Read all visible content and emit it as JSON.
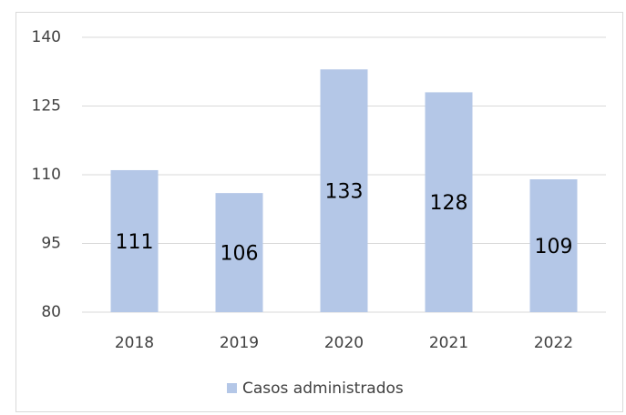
{
  "chart_data": {
    "type": "bar",
    "categories": [
      "2018",
      "2019",
      "2020",
      "2021",
      "2022"
    ],
    "series": [
      {
        "name": "Casos administrados",
        "color": "#b4c7e7",
        "values": [
          111,
          106,
          133,
          128,
          109
        ]
      }
    ],
    "ylim": [
      80,
      140
    ],
    "yticks": [
      80,
      95,
      110,
      125,
      140
    ],
    "grid": true,
    "legend": "bottom",
    "data_labels": true
  }
}
